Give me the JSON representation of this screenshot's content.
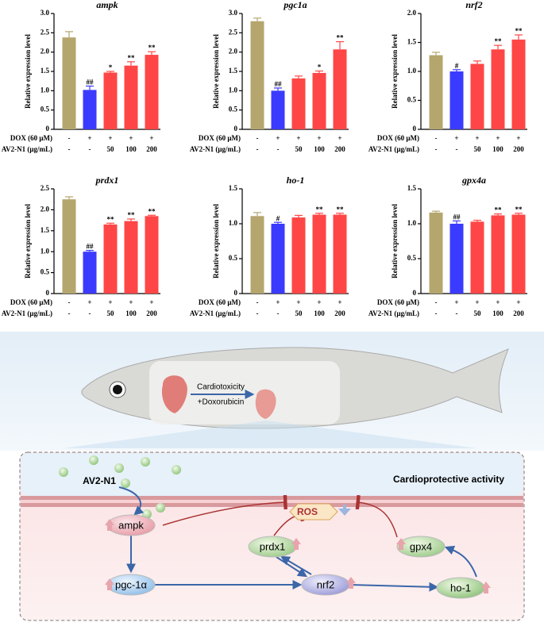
{
  "chart_data": [
    {
      "type": "bar",
      "title": "ampk",
      "ylabel": "Relative expression level",
      "ylim": [
        0,
        3
      ],
      "yticks": [
        0,
        0.5,
        {
          "value": 1,
          "label": "1.0"
        },
        1.5,
        {
          "value": 2,
          "label": "2.0"
        },
        2.5,
        {
          "value": 3,
          "label": "3.0"
        }
      ],
      "values": [
        2.38,
        1.02,
        1.47,
        1.65,
        1.93
      ],
      "errors": [
        0.15,
        0.1,
        0.03,
        0.1,
        0.08
      ],
      "significance": [
        null,
        "##",
        "*",
        "**",
        "**"
      ],
      "colors": [
        "#b5a66e",
        "#3b3bff",
        "#ff4646",
        "#ff4646",
        "#ff4646"
      ],
      "treatments": [
        {
          "label": "DOX (60 μM)",
          "values": [
            "-",
            "+",
            "+",
            "+",
            "+"
          ]
        },
        {
          "label": "AV2-N1 (μg/mL)",
          "values": [
            "-",
            "-",
            "50",
            "100",
            "200"
          ]
        }
      ]
    },
    {
      "type": "bar",
      "title": "pgc1a",
      "ylabel": "Relative expression level",
      "ylim": [
        0,
        3
      ],
      "yticks": [
        0,
        0.5,
        {
          "value": 1,
          "label": "1.0"
        },
        1.5,
        {
          "value": 2,
          "label": "2.0"
        },
        2.5,
        {
          "value": 3,
          "label": "3.0"
        }
      ],
      "values": [
        2.8,
        1.0,
        1.32,
        1.46,
        2.07
      ],
      "errors": [
        0.08,
        0.07,
        0.06,
        0.05,
        0.2
      ],
      "significance": [
        null,
        "##",
        null,
        "*",
        "**"
      ],
      "colors": [
        "#b5a66e",
        "#3b3bff",
        "#ff4646",
        "#ff4646",
        "#ff4646"
      ],
      "treatments": [
        {
          "label": "DOX (60 μM)",
          "values": [
            "-",
            "+",
            "+",
            "+",
            "+"
          ]
        },
        {
          "label": "AV2-N1 (μg/mL)",
          "values": [
            "-",
            "-",
            "50",
            "100",
            "200"
          ]
        }
      ]
    },
    {
      "type": "bar",
      "title": "nrf2",
      "ylabel": "Relative expression level",
      "ylim": [
        0,
        2
      ],
      "yticks": [
        0,
        0.5,
        {
          "value": 1,
          "label": "1.0"
        },
        1.5,
        {
          "value": 2,
          "label": "2.0"
        }
      ],
      "values": [
        1.28,
        1.0,
        1.13,
        1.38,
        1.55
      ],
      "errors": [
        0.05,
        0.03,
        0.05,
        0.07,
        0.08
      ],
      "significance": [
        null,
        "#",
        null,
        "**",
        "**"
      ],
      "colors": [
        "#b5a66e",
        "#3b3bff",
        "#ff4646",
        "#ff4646",
        "#ff4646"
      ],
      "treatments": [
        {
          "label": "DOX (60 μM)",
          "values": [
            "-",
            "+",
            "+",
            "+",
            "+"
          ]
        },
        {
          "label": "AV2-N1 (μg/mL)",
          "values": [
            "-",
            "-",
            "50",
            "100",
            "200"
          ]
        }
      ]
    },
    {
      "type": "bar",
      "title": "prdx1",
      "ylabel": "Relative expression level",
      "ylim": [
        0,
        2.5
      ],
      "yticks": [
        0,
        0.5,
        {
          "value": 1,
          "label": "1.0"
        },
        1.5,
        {
          "value": 2,
          "label": "2.0"
        },
        2.5
      ],
      "values": [
        2.25,
        1.0,
        1.65,
        1.73,
        1.85
      ],
      "errors": [
        0.06,
        0.03,
        0.03,
        0.05,
        0.02
      ],
      "significance": [
        null,
        "##",
        "**",
        "**",
        "**"
      ],
      "colors": [
        "#b5a66e",
        "#3b3bff",
        "#ff4646",
        "#ff4646",
        "#ff4646"
      ],
      "treatments": [
        {
          "label": "DOX (60 μM)",
          "values": [
            "-",
            "+",
            "+",
            "+",
            "+"
          ]
        },
        {
          "label": "AV2-N1 (μg/mL)",
          "values": [
            "-",
            "-",
            "50",
            "100",
            "200"
          ]
        }
      ]
    },
    {
      "type": "bar",
      "title": "ho-1",
      "ylabel": "Relative expression level",
      "ylim": [
        0,
        1.5
      ],
      "yticks": [
        0,
        0.5,
        {
          "value": 1,
          "label": "1.0"
        },
        1.5
      ],
      "values": [
        1.11,
        1.0,
        1.09,
        1.13,
        1.13
      ],
      "errors": [
        0.05,
        0.02,
        0.03,
        0.02,
        0.02
      ],
      "significance": [
        null,
        "#",
        null,
        "**",
        "**"
      ],
      "colors": [
        "#b5a66e",
        "#3b3bff",
        "#ff4646",
        "#ff4646",
        "#ff4646"
      ],
      "treatments": [
        {
          "label": "DOX (60 μM)",
          "values": [
            "-",
            "+",
            "+",
            "+",
            "+"
          ]
        },
        {
          "label": "AV2-N1 (μg/mL)",
          "values": [
            "-",
            "-",
            "50",
            "100",
            "200"
          ]
        }
      ]
    },
    {
      "type": "bar",
      "title": "gpx4a",
      "ylabel": "Relative expression level",
      "ylim": [
        0,
        1.5
      ],
      "yticks": [
        0,
        0.5,
        {
          "value": 1,
          "label": "1.0"
        },
        1.5
      ],
      "values": [
        1.16,
        1.0,
        1.03,
        1.12,
        1.13
      ],
      "errors": [
        0.02,
        0.04,
        0.02,
        0.02,
        0.02
      ],
      "significance": [
        null,
        "##",
        null,
        "**",
        "**"
      ],
      "colors": [
        "#b5a66e",
        "#3b3bff",
        "#ff4646",
        "#ff4646",
        "#ff4646"
      ],
      "treatments": [
        {
          "label": "DOX (60 μM)",
          "values": [
            "-",
            "+",
            "+",
            "+",
            "+"
          ]
        },
        {
          "label": "AV2-N1 (μg/mL)",
          "values": [
            "-",
            "-",
            "50",
            "100",
            "200"
          ]
        }
      ]
    }
  ],
  "diagram": {
    "fish_labels": [
      "Cardiotoxicity",
      "+Doxorubicin"
    ],
    "title": "Cardioprotective activity",
    "compound": "AV2-N1",
    "ros": "ROS",
    "nodes": [
      {
        "label": "ampk"
      },
      {
        "label": "pgc-1α"
      },
      {
        "label": "prdx1"
      },
      {
        "label": "nrf2"
      },
      {
        "label": "gpx4"
      },
      {
        "label": "ho-1"
      }
    ]
  }
}
